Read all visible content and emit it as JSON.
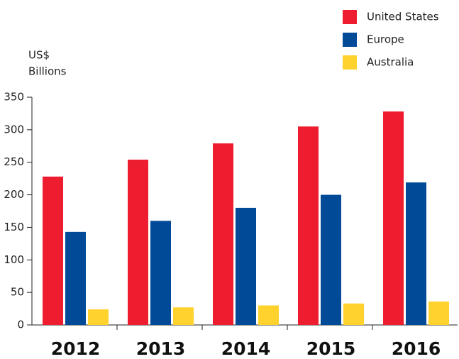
{
  "chart_data": {
    "type": "bar",
    "ylabel_lines": [
      "US$",
      "Billions"
    ],
    "categories": [
      "2012",
      "2013",
      "2014",
      "2015",
      "2016"
    ],
    "series": [
      {
        "name": "United States",
        "color": "#ed1c2e",
        "values": [
          228,
          254,
          279,
          305,
          328
        ]
      },
      {
        "name": "Europe",
        "color": "#004a98",
        "values": [
          143,
          160,
          180,
          200,
          219
        ]
      },
      {
        "name": "Australia",
        "color": "#ffd22e",
        "values": [
          24,
          27,
          30,
          33,
          36
        ]
      }
    ],
    "ylim": [
      0,
      350
    ],
    "yticks": [
      0,
      50,
      100,
      150,
      200,
      250,
      300,
      350
    ],
    "legend": "top-right"
  }
}
